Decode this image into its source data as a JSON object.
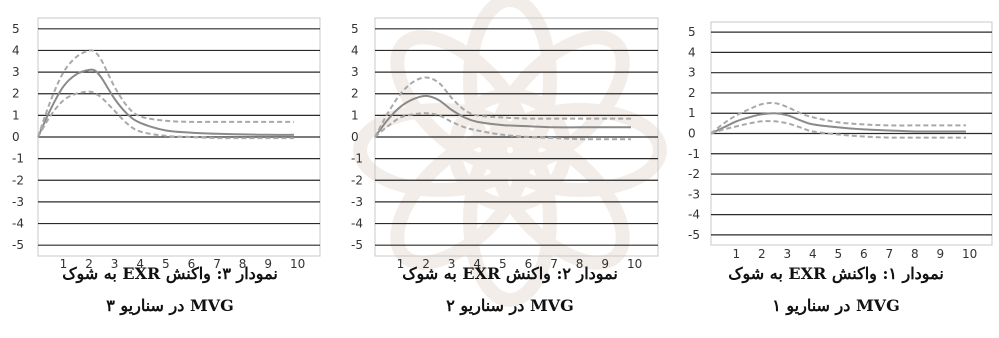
{
  "colors": {
    "grid": "#2a2a2a",
    "frame": "#c8c8c8",
    "main_line": "#8a8a8a",
    "band_line": "#a9a9a9",
    "watermark": "#8b5a2b"
  },
  "chart_data": [
    {
      "type": "line",
      "caption": [
        "نمودار ۳: واکنش EXR به شوک",
        "MVG در سناریو ۳"
      ],
      "x_ticks": [
        1,
        2,
        3,
        4,
        5,
        6,
        7,
        8,
        9,
        10
      ],
      "y_ticks": [
        5,
        4,
        3,
        2,
        1,
        0,
        -1,
        -2,
        -3,
        -4,
        -5
      ],
      "xlim": [
        0,
        10
      ],
      "ylim": [
        -5.5,
        5.5
      ],
      "grid": true,
      "series": [
        {
          "role": "response",
          "style": "solid",
          "x": [
            0,
            0.5,
            1,
            1.5,
            2,
            2.25,
            2.5,
            3,
            3.5,
            4,
            5,
            6,
            7,
            8,
            9,
            10
          ],
          "y": [
            0,
            1.3,
            2.35,
            2.9,
            3.1,
            3.05,
            2.7,
            1.75,
            1.05,
            0.65,
            0.3,
            0.2,
            0.15,
            0.12,
            0.1,
            0.1
          ]
        },
        {
          "role": "upper",
          "style": "dashed",
          "x": [
            0,
            0.5,
            1,
            1.5,
            2,
            2.25,
            2.5,
            3,
            3.5,
            4,
            5,
            6,
            7,
            8,
            9,
            10
          ],
          "y": [
            0,
            1.7,
            3.0,
            3.7,
            4.0,
            3.9,
            3.5,
            2.3,
            1.4,
            0.95,
            0.75,
            0.7,
            0.7,
            0.7,
            0.7,
            0.7
          ]
        },
        {
          "role": "lower",
          "style": "dashed",
          "x": [
            0,
            0.5,
            1,
            1.5,
            2,
            2.25,
            2.5,
            3,
            3.5,
            4,
            5,
            6,
            7,
            8,
            9,
            10
          ],
          "y": [
            0,
            1.0,
            1.7,
            2.0,
            2.1,
            2.0,
            1.8,
            1.2,
            0.6,
            0.25,
            0.05,
            0.0,
            -0.05,
            -0.05,
            -0.05,
            -0.05
          ]
        }
      ]
    },
    {
      "type": "line",
      "caption": [
        "نمودار ۲: واکنش EXR به شوک",
        "MVG در سناریو ۲"
      ],
      "x_ticks": [
        1,
        2,
        3,
        4,
        5,
        6,
        7,
        8,
        9,
        10
      ],
      "y_ticks": [
        5,
        4,
        3,
        2,
        1,
        0,
        -1,
        -2,
        -3,
        -4,
        -5
      ],
      "xlim": [
        0,
        10
      ],
      "ylim": [
        -5.5,
        5.5
      ],
      "grid": true,
      "series": [
        {
          "role": "response",
          "style": "solid",
          "x": [
            0,
            0.5,
            1,
            1.5,
            2,
            2.5,
            3,
            3.5,
            4,
            5,
            6,
            7,
            8,
            9,
            10
          ],
          "y": [
            0,
            0.8,
            1.4,
            1.75,
            1.9,
            1.7,
            1.25,
            0.9,
            0.7,
            0.55,
            0.5,
            0.45,
            0.45,
            0.45,
            0.45
          ]
        },
        {
          "role": "upper",
          "style": "dashed",
          "x": [
            0,
            0.5,
            1,
            1.5,
            2,
            2.5,
            3,
            3.5,
            4,
            5,
            6,
            7,
            8,
            9,
            10
          ],
          "y": [
            0,
            1.1,
            2.0,
            2.55,
            2.75,
            2.5,
            1.8,
            1.25,
            1.0,
            0.9,
            0.85,
            0.85,
            0.85,
            0.85,
            0.85
          ]
        },
        {
          "role": "lower",
          "style": "dashed",
          "x": [
            0,
            0.5,
            1,
            1.5,
            2,
            2.5,
            3,
            3.5,
            4,
            5,
            6,
            7,
            8,
            9,
            10
          ],
          "y": [
            0,
            0.5,
            0.9,
            1.05,
            1.1,
            1.0,
            0.7,
            0.45,
            0.3,
            0.1,
            0.0,
            -0.05,
            -0.1,
            -0.1,
            -0.1
          ]
        }
      ]
    },
    {
      "type": "line",
      "caption": [
        "نمودار ۱: واکنش EXR به شوک",
        "MVG در سناریو ۱"
      ],
      "x_ticks": [
        1,
        2,
        3,
        4,
        5,
        6,
        7,
        8,
        9,
        10
      ],
      "y_ticks": [
        5,
        4,
        3,
        2,
        1,
        0,
        -1,
        -2,
        -3,
        -4,
        -5
      ],
      "xlim": [
        0,
        10
      ],
      "ylim": [
        -5.5,
        5.5
      ],
      "grid": true,
      "series": [
        {
          "role": "response",
          "style": "solid",
          "x": [
            0,
            0.5,
            1,
            1.5,
            2,
            2.5,
            3,
            3.5,
            4,
            5,
            6,
            7,
            8,
            9,
            10
          ],
          "y": [
            0,
            0.3,
            0.6,
            0.8,
            0.95,
            1.0,
            0.9,
            0.65,
            0.45,
            0.3,
            0.2,
            0.15,
            0.1,
            0.1,
            0.1
          ]
        },
        {
          "role": "upper",
          "style": "dashed",
          "x": [
            0,
            0.5,
            1,
            1.5,
            2,
            2.5,
            3,
            3.5,
            4,
            5,
            6,
            7,
            8,
            9,
            10
          ],
          "y": [
            0,
            0.5,
            0.9,
            1.2,
            1.45,
            1.5,
            1.3,
            1.0,
            0.8,
            0.55,
            0.45,
            0.4,
            0.4,
            0.4,
            0.4
          ]
        },
        {
          "role": "lower",
          "style": "dashed",
          "x": [
            0,
            0.5,
            1,
            1.5,
            2,
            2.5,
            3,
            3.5,
            4,
            5,
            6,
            7,
            8,
            9,
            10
          ],
          "y": [
            0,
            0.2,
            0.35,
            0.5,
            0.6,
            0.6,
            0.5,
            0.3,
            0.1,
            -0.05,
            -0.15,
            -0.2,
            -0.2,
            -0.2,
            -0.2
          ]
        }
      ]
    }
  ]
}
